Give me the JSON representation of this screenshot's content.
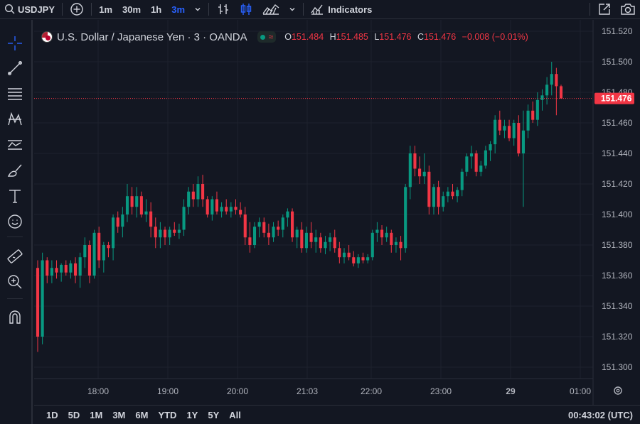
{
  "topbar": {
    "symbol": "USDJPY",
    "timeframes": [
      {
        "label": "1m",
        "active": false
      },
      {
        "label": "30m",
        "active": false
      },
      {
        "label": "1h",
        "active": false
      },
      {
        "label": "3m",
        "active": true
      }
    ],
    "indicators_label": "Indicators"
  },
  "legend": {
    "title": "U.S. Dollar / Japanese Yen · 3 · OANDA",
    "open_key": "O",
    "open": "151.484",
    "high_key": "H",
    "high": "151.485",
    "low_key": "L",
    "low": "151.476",
    "close_key": "C",
    "close": "151.476",
    "change": "−0.008 (−0.01%)"
  },
  "bottombar": {
    "ranges": [
      "1D",
      "5D",
      "1M",
      "3M",
      "6M",
      "YTD",
      "1Y",
      "5Y",
      "All"
    ],
    "clock": "00:43:02 (UTC)"
  },
  "colors": {
    "up": "#089981",
    "down": "#f23645",
    "bg": "#131722",
    "grid": "#1e222d",
    "accent": "#2962ff"
  },
  "chart_data": {
    "type": "candlestick",
    "yticks": [
      "151.520",
      "151.500",
      "151.480",
      "151.460",
      "151.440",
      "151.420",
      "151.400",
      "151.380",
      "151.360",
      "151.340",
      "151.320",
      "151.300"
    ],
    "xticks": [
      "18:00",
      "19:00",
      "20:00",
      "21:03",
      "22:00",
      "23:00",
      "29",
      "01:00"
    ],
    "current_price": "151.476",
    "ylim": [
      151.295,
      151.522
    ],
    "candles": [
      [
        151.365,
        151.37,
        151.31,
        151.32
      ],
      [
        151.32,
        151.375,
        151.315,
        151.37
      ],
      [
        151.37,
        151.372,
        151.355,
        151.36
      ],
      [
        151.36,
        151.37,
        151.355,
        151.365
      ],
      [
        151.365,
        151.37,
        151.358,
        151.362
      ],
      [
        151.362,
        151.368,
        151.356,
        151.367
      ],
      [
        151.367,
        151.37,
        151.36,
        151.362
      ],
      [
        151.362,
        151.37,
        151.358,
        151.368
      ],
      [
        151.368,
        151.372,
        151.355,
        151.36
      ],
      [
        151.36,
        151.375,
        151.352,
        151.372
      ],
      [
        151.372,
        151.385,
        151.365,
        151.38
      ],
      [
        151.38,
        151.383,
        151.355,
        151.36
      ],
      [
        151.36,
        151.39,
        151.358,
        151.388
      ],
      [
        151.388,
        151.392,
        151.365,
        151.37
      ],
      [
        151.37,
        151.382,
        151.362,
        151.38
      ],
      [
        151.38,
        151.382,
        151.372,
        151.378
      ],
      [
        151.378,
        151.4,
        151.37,
        151.398
      ],
      [
        151.398,
        151.402,
        151.388,
        151.392
      ],
      [
        151.392,
        151.405,
        151.385,
        151.4
      ],
      [
        151.4,
        151.42,
        151.395,
        151.412
      ],
      [
        151.412,
        151.418,
        151.4,
        151.405
      ],
      [
        151.405,
        151.418,
        151.398,
        151.412
      ],
      [
        151.412,
        151.415,
        151.398,
        151.4
      ],
      [
        151.4,
        151.41,
        151.395,
        151.402
      ],
      [
        151.402,
        151.408,
        151.385,
        151.392
      ],
      [
        151.392,
        151.398,
        151.378,
        151.385
      ],
      [
        151.385,
        151.395,
        151.378,
        151.39
      ],
      [
        151.39,
        151.392,
        151.38,
        151.385
      ],
      [
        151.385,
        151.392,
        151.38,
        151.39
      ],
      [
        151.39,
        151.395,
        151.386,
        151.388
      ],
      [
        151.388,
        151.394,
        151.384,
        151.39
      ],
      [
        151.39,
        151.41,
        151.386,
        151.405
      ],
      [
        151.405,
        151.418,
        151.4,
        151.415
      ],
      [
        151.415,
        151.42,
        151.405,
        151.41
      ],
      [
        151.41,
        151.425,
        151.405,
        151.42
      ],
      [
        151.42,
        151.426,
        151.405,
        151.41
      ],
      [
        151.41,
        151.412,
        151.398,
        151.4
      ],
      [
        151.4,
        151.412,
        151.396,
        151.41
      ],
      [
        151.41,
        151.415,
        151.4,
        151.402
      ],
      [
        151.402,
        151.408,
        151.398,
        151.405
      ],
      [
        151.405,
        151.41,
        151.4,
        151.402
      ],
      [
        151.402,
        151.408,
        151.398,
        151.405
      ],
      [
        151.405,
        151.41,
        151.4,
        151.403
      ],
      [
        151.403,
        151.408,
        151.398,
        151.4
      ],
      [
        151.4,
        151.405,
        151.38,
        151.385
      ],
      [
        151.385,
        151.395,
        151.375,
        151.38
      ],
      [
        151.38,
        151.395,
        151.378,
        151.392
      ],
      [
        151.392,
        151.398,
        151.385,
        151.395
      ],
      [
        151.395,
        151.398,
        151.385,
        151.388
      ],
      [
        151.388,
        151.394,
        151.38,
        151.385
      ],
      [
        151.385,
        151.395,
        151.382,
        151.392
      ],
      [
        151.392,
        151.396,
        151.386,
        151.39
      ],
      [
        151.39,
        151.4,
        151.385,
        151.398
      ],
      [
        151.398,
        151.404,
        151.392,
        151.402
      ],
      [
        151.402,
        151.404,
        151.382,
        151.385
      ],
      [
        151.385,
        151.392,
        151.378,
        151.39
      ],
      [
        151.39,
        151.395,
        151.375,
        151.378
      ],
      [
        151.378,
        151.392,
        151.375,
        151.388
      ],
      [
        151.388,
        151.395,
        151.378,
        151.382
      ],
      [
        151.382,
        151.39,
        151.375,
        151.385
      ],
      [
        151.385,
        151.388,
        151.375,
        151.378
      ],
      [
        151.378,
        151.386,
        151.374,
        151.382
      ],
      [
        151.382,
        151.388,
        151.376,
        151.385
      ],
      [
        151.385,
        151.39,
        151.375,
        151.378
      ],
      [
        151.378,
        151.382,
        151.368,
        151.372
      ],
      [
        151.372,
        151.378,
        151.368,
        151.375
      ],
      [
        151.375,
        151.38,
        151.37,
        151.372
      ],
      [
        151.372,
        151.376,
        151.366,
        151.368
      ],
      [
        151.368,
        151.374,
        151.365,
        151.372
      ],
      [
        151.372,
        151.375,
        151.368,
        151.37
      ],
      [
        151.37,
        151.374,
        151.368,
        151.372
      ],
      [
        151.372,
        151.39,
        151.37,
        151.388
      ],
      [
        151.388,
        151.395,
        151.382,
        151.39
      ],
      [
        151.39,
        151.393,
        151.38,
        151.385
      ],
      [
        151.385,
        151.392,
        151.382,
        151.388
      ],
      [
        151.388,
        151.39,
        151.375,
        151.38
      ],
      [
        151.38,
        151.385,
        151.375,
        151.382
      ],
      [
        151.382,
        151.386,
        151.37,
        151.378
      ],
      [
        151.378,
        151.42,
        151.375,
        151.418
      ],
      [
        151.418,
        151.445,
        151.41,
        151.44
      ],
      [
        151.44,
        151.445,
        151.425,
        151.43
      ],
      [
        151.43,
        151.438,
        151.42,
        151.425
      ],
      [
        151.425,
        151.44,
        151.42,
        151.428
      ],
      [
        151.428,
        151.432,
        151.4,
        151.405
      ],
      [
        151.405,
        151.42,
        151.4,
        151.418
      ],
      [
        151.418,
        151.422,
        151.4,
        151.405
      ],
      [
        151.405,
        151.415,
        151.402,
        151.412
      ],
      [
        151.412,
        151.418,
        151.408,
        151.415
      ],
      [
        151.415,
        151.42,
        151.41,
        151.412
      ],
      [
        151.412,
        151.418,
        151.408,
        151.416
      ],
      [
        151.416,
        151.43,
        151.412,
        151.428
      ],
      [
        151.428,
        151.44,
        151.425,
        151.438
      ],
      [
        151.438,
        151.445,
        151.43,
        151.44
      ],
      [
        151.44,
        151.442,
        151.425,
        151.428
      ],
      [
        151.428,
        151.435,
        151.425,
        151.432
      ],
      [
        151.432,
        151.445,
        151.43,
        151.442
      ],
      [
        151.442,
        151.448,
        151.435,
        151.446
      ],
      [
        151.446,
        151.465,
        151.44,
        151.462
      ],
      [
        151.462,
        151.468,
        151.452,
        151.455
      ],
      [
        151.455,
        151.462,
        151.45,
        151.458
      ],
      [
        151.458,
        151.462,
        151.448,
        151.45
      ],
      [
        151.45,
        151.462,
        151.445,
        151.46
      ],
      [
        151.46,
        151.465,
        151.438,
        151.44
      ],
      [
        151.44,
        151.468,
        151.405,
        151.455
      ],
      [
        151.455,
        151.472,
        151.45,
        151.468
      ],
      [
        151.468,
        151.474,
        151.46,
        151.462
      ],
      [
        151.462,
        151.48,
        151.458,
        151.475
      ],
      [
        151.475,
        151.482,
        151.468,
        151.478
      ],
      [
        151.478,
        151.49,
        151.472,
        151.485
      ],
      [
        151.485,
        151.5,
        151.478,
        151.492
      ],
      [
        151.492,
        151.496,
        151.465,
        151.484
      ],
      [
        151.484,
        151.485,
        151.476,
        151.476
      ]
    ]
  }
}
